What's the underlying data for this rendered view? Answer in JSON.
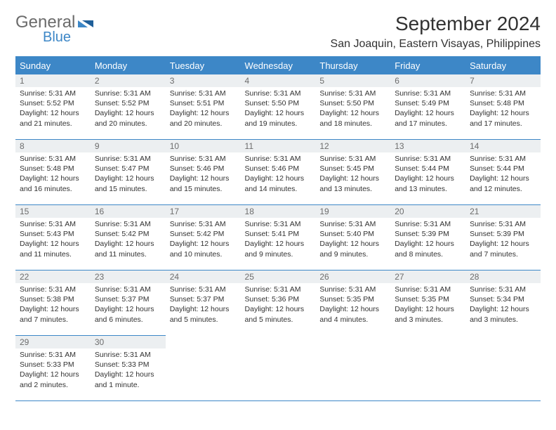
{
  "brand": {
    "part1": "General",
    "part2": "Blue"
  },
  "title": "September 2024",
  "location": "San Joaquin, Eastern Visayas, Philippines",
  "header_bg": "#3d87c7",
  "header_fg": "#ffffff",
  "daynum_bg": "#eceff1",
  "daynum_fg": "#6d6d6d",
  "text_color": "#323232",
  "rule_color": "#3d87c7",
  "weekdays": [
    "Sunday",
    "Monday",
    "Tuesday",
    "Wednesday",
    "Thursday",
    "Friday",
    "Saturday"
  ],
  "weeks": [
    [
      {
        "n": "1",
        "sr": "Sunrise: 5:31 AM",
        "ss": "Sunset: 5:52 PM",
        "dl": "Daylight: 12 hours and 21 minutes."
      },
      {
        "n": "2",
        "sr": "Sunrise: 5:31 AM",
        "ss": "Sunset: 5:52 PM",
        "dl": "Daylight: 12 hours and 20 minutes."
      },
      {
        "n": "3",
        "sr": "Sunrise: 5:31 AM",
        "ss": "Sunset: 5:51 PM",
        "dl": "Daylight: 12 hours and 20 minutes."
      },
      {
        "n": "4",
        "sr": "Sunrise: 5:31 AM",
        "ss": "Sunset: 5:50 PM",
        "dl": "Daylight: 12 hours and 19 minutes."
      },
      {
        "n": "5",
        "sr": "Sunrise: 5:31 AM",
        "ss": "Sunset: 5:50 PM",
        "dl": "Daylight: 12 hours and 18 minutes."
      },
      {
        "n": "6",
        "sr": "Sunrise: 5:31 AM",
        "ss": "Sunset: 5:49 PM",
        "dl": "Daylight: 12 hours and 17 minutes."
      },
      {
        "n": "7",
        "sr": "Sunrise: 5:31 AM",
        "ss": "Sunset: 5:48 PM",
        "dl": "Daylight: 12 hours and 17 minutes."
      }
    ],
    [
      {
        "n": "8",
        "sr": "Sunrise: 5:31 AM",
        "ss": "Sunset: 5:48 PM",
        "dl": "Daylight: 12 hours and 16 minutes."
      },
      {
        "n": "9",
        "sr": "Sunrise: 5:31 AM",
        "ss": "Sunset: 5:47 PM",
        "dl": "Daylight: 12 hours and 15 minutes."
      },
      {
        "n": "10",
        "sr": "Sunrise: 5:31 AM",
        "ss": "Sunset: 5:46 PM",
        "dl": "Daylight: 12 hours and 15 minutes."
      },
      {
        "n": "11",
        "sr": "Sunrise: 5:31 AM",
        "ss": "Sunset: 5:46 PM",
        "dl": "Daylight: 12 hours and 14 minutes."
      },
      {
        "n": "12",
        "sr": "Sunrise: 5:31 AM",
        "ss": "Sunset: 5:45 PM",
        "dl": "Daylight: 12 hours and 13 minutes."
      },
      {
        "n": "13",
        "sr": "Sunrise: 5:31 AM",
        "ss": "Sunset: 5:44 PM",
        "dl": "Daylight: 12 hours and 13 minutes."
      },
      {
        "n": "14",
        "sr": "Sunrise: 5:31 AM",
        "ss": "Sunset: 5:44 PM",
        "dl": "Daylight: 12 hours and 12 minutes."
      }
    ],
    [
      {
        "n": "15",
        "sr": "Sunrise: 5:31 AM",
        "ss": "Sunset: 5:43 PM",
        "dl": "Daylight: 12 hours and 11 minutes."
      },
      {
        "n": "16",
        "sr": "Sunrise: 5:31 AM",
        "ss": "Sunset: 5:42 PM",
        "dl": "Daylight: 12 hours and 11 minutes."
      },
      {
        "n": "17",
        "sr": "Sunrise: 5:31 AM",
        "ss": "Sunset: 5:42 PM",
        "dl": "Daylight: 12 hours and 10 minutes."
      },
      {
        "n": "18",
        "sr": "Sunrise: 5:31 AM",
        "ss": "Sunset: 5:41 PM",
        "dl": "Daylight: 12 hours and 9 minutes."
      },
      {
        "n": "19",
        "sr": "Sunrise: 5:31 AM",
        "ss": "Sunset: 5:40 PM",
        "dl": "Daylight: 12 hours and 9 minutes."
      },
      {
        "n": "20",
        "sr": "Sunrise: 5:31 AM",
        "ss": "Sunset: 5:39 PM",
        "dl": "Daylight: 12 hours and 8 minutes."
      },
      {
        "n": "21",
        "sr": "Sunrise: 5:31 AM",
        "ss": "Sunset: 5:39 PM",
        "dl": "Daylight: 12 hours and 7 minutes."
      }
    ],
    [
      {
        "n": "22",
        "sr": "Sunrise: 5:31 AM",
        "ss": "Sunset: 5:38 PM",
        "dl": "Daylight: 12 hours and 7 minutes."
      },
      {
        "n": "23",
        "sr": "Sunrise: 5:31 AM",
        "ss": "Sunset: 5:37 PM",
        "dl": "Daylight: 12 hours and 6 minutes."
      },
      {
        "n": "24",
        "sr": "Sunrise: 5:31 AM",
        "ss": "Sunset: 5:37 PM",
        "dl": "Daylight: 12 hours and 5 minutes."
      },
      {
        "n": "25",
        "sr": "Sunrise: 5:31 AM",
        "ss": "Sunset: 5:36 PM",
        "dl": "Daylight: 12 hours and 5 minutes."
      },
      {
        "n": "26",
        "sr": "Sunrise: 5:31 AM",
        "ss": "Sunset: 5:35 PM",
        "dl": "Daylight: 12 hours and 4 minutes."
      },
      {
        "n": "27",
        "sr": "Sunrise: 5:31 AM",
        "ss": "Sunset: 5:35 PM",
        "dl": "Daylight: 12 hours and 3 minutes."
      },
      {
        "n": "28",
        "sr": "Sunrise: 5:31 AM",
        "ss": "Sunset: 5:34 PM",
        "dl": "Daylight: 12 hours and 3 minutes."
      }
    ],
    [
      {
        "n": "29",
        "sr": "Sunrise: 5:31 AM",
        "ss": "Sunset: 5:33 PM",
        "dl": "Daylight: 12 hours and 2 minutes."
      },
      {
        "n": "30",
        "sr": "Sunrise: 5:31 AM",
        "ss": "Sunset: 5:33 PM",
        "dl": "Daylight: 12 hours and 1 minute."
      },
      null,
      null,
      null,
      null,
      null
    ]
  ]
}
